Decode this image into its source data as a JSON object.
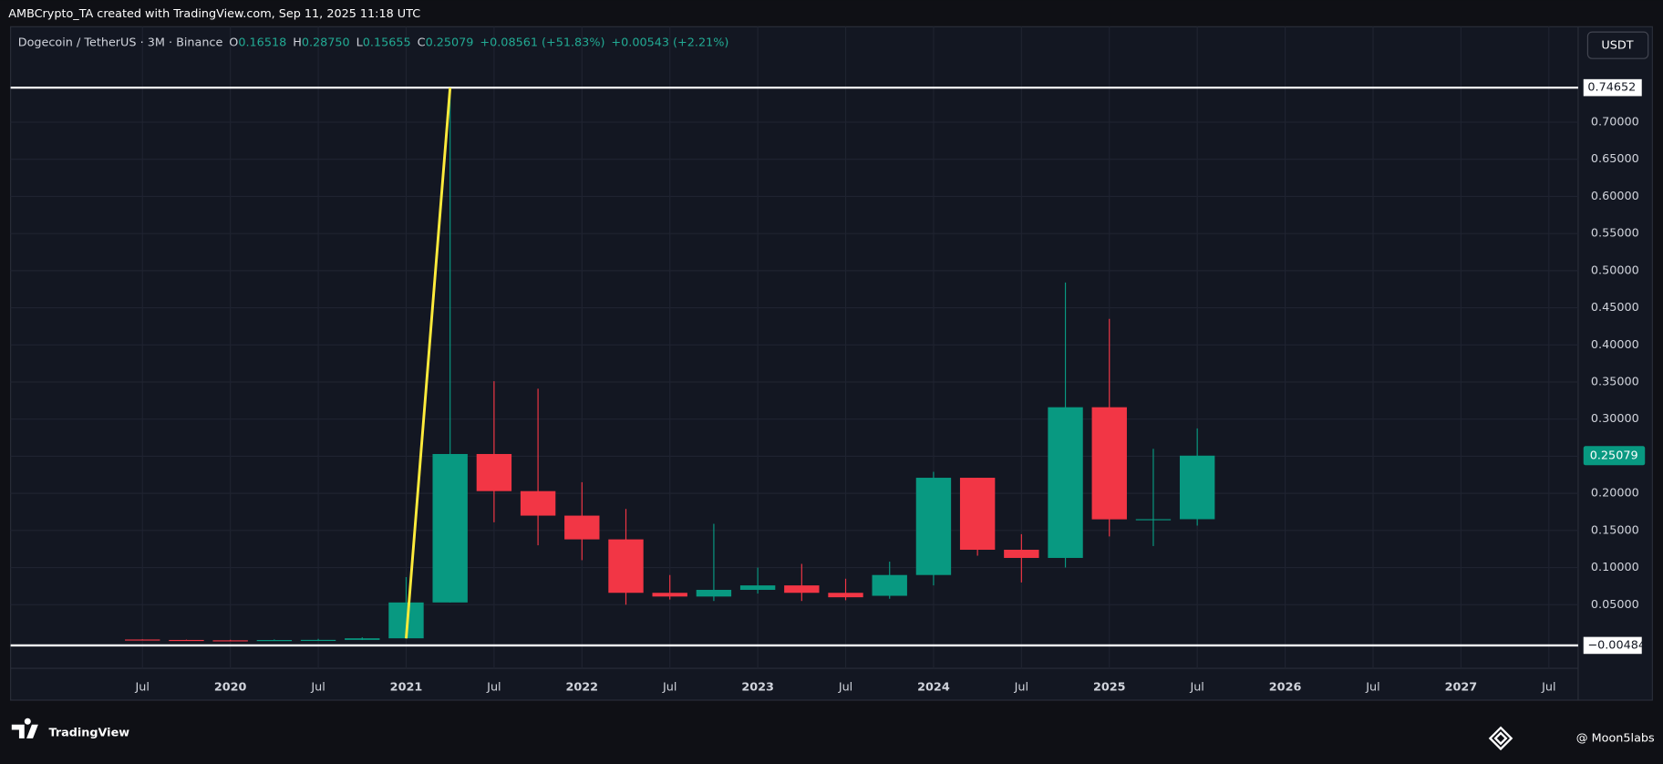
{
  "chart_data": {
    "type": "candlestick",
    "caption": "AMBCrypto_TA created with TradingView.com, Sep 11, 2025 11:18 UTC",
    "title": "Dogecoin / TetherUS · 3M · Binance",
    "legend": {
      "open_key": "O",
      "open": "0.16518",
      "high_key": "H",
      "high": "0.28750",
      "low_key": "L",
      "low": "0.15655",
      "close_key": "C",
      "close": "0.25079",
      "change": "+0.08561 (+51.83%)",
      "change2": "+0.00543 (+2.21%)"
    },
    "currency": "USDT",
    "x": [
      "2019-07",
      "2019-10",
      "2020-01",
      "2020-04",
      "2020-07",
      "2020-10",
      "2021-01",
      "2021-04",
      "2021-07",
      "2021-10",
      "2022-01",
      "2022-04",
      "2022-07",
      "2022-10",
      "2023-01",
      "2023-04",
      "2023-07",
      "2023-10",
      "2024-01",
      "2024-04",
      "2024-07",
      "2024-10",
      "2025-01",
      "2025-04",
      "2025-07"
    ],
    "open": [
      0.0031,
      0.0025,
      0.002,
      0.0018,
      0.0024,
      0.0026,
      0.0047,
      0.053,
      0.253,
      0.203,
      0.17,
      0.138,
      0.066,
      0.061,
      0.07,
      0.076,
      0.066,
      0.062,
      0.09,
      0.221,
      0.124,
      0.113,
      0.316,
      0.165,
      0.16518
    ],
    "high": [
      0.0034,
      0.0029,
      0.0027,
      0.0032,
      0.004,
      0.006,
      0.0872,
      0.74652,
      0.351,
      0.341,
      0.215,
      0.179,
      0.09,
      0.159,
      0.1,
      0.105,
      0.085,
      0.108,
      0.229,
      0.221,
      0.145,
      0.484,
      0.435,
      0.26,
      0.2875
    ],
    "low": [
      0.0022,
      0.0019,
      0.0012,
      0.0017,
      0.0024,
      0.0024,
      0.0046,
      0.053,
      0.161,
      0.13,
      0.11,
      0.05,
      0.057,
      0.055,
      0.065,
      0.055,
      0.056,
      0.058,
      0.076,
      0.116,
      0.08,
      0.1,
      0.142,
      0.129,
      0.15655
    ],
    "close": [
      0.0025,
      0.002,
      0.0018,
      0.0024,
      0.0026,
      0.0047,
      0.053,
      0.253,
      0.203,
      0.17,
      0.138,
      0.066,
      0.061,
      0.07,
      0.076,
      0.066,
      0.06,
      0.09,
      0.221,
      0.124,
      0.113,
      0.316,
      0.165,
      0.1652,
      0.25079
    ],
    "up_color": "#089981",
    "down_color": "#f23645",
    "xlim": [
      "2018-10",
      "2027-09"
    ],
    "xticks": [
      {
        "value": "2019-07",
        "label": "Jul"
      },
      {
        "value": "2020-01",
        "label": "2020"
      },
      {
        "value": "2020-07",
        "label": "Jul"
      },
      {
        "value": "2021-01",
        "label": "2021"
      },
      {
        "value": "2021-07",
        "label": "Jul"
      },
      {
        "value": "2022-01",
        "label": "2022"
      },
      {
        "value": "2022-07",
        "label": "Jul"
      },
      {
        "value": "2023-01",
        "label": "2023"
      },
      {
        "value": "2023-07",
        "label": "Jul"
      },
      {
        "value": "2024-01",
        "label": "2024"
      },
      {
        "value": "2024-07",
        "label": "Jul"
      },
      {
        "value": "2025-01",
        "label": "2025"
      },
      {
        "value": "2025-07",
        "label": "Jul"
      },
      {
        "value": "2026-01",
        "label": "2026"
      },
      {
        "value": "2026-07",
        "label": "Jul"
      },
      {
        "value": "2027-01",
        "label": "2027"
      },
      {
        "value": "2027-07",
        "label": "Jul"
      }
    ],
    "ylim": [
      -0.0786,
      0.8286
    ],
    "yticks": [
      {
        "value": 0.05,
        "label": "0.05000"
      },
      {
        "value": 0.1,
        "label": "0.10000"
      },
      {
        "value": 0.15,
        "label": "0.15000"
      },
      {
        "value": 0.2,
        "label": "0.20000"
      },
      {
        "value": 0.25,
        "label": "0.25000"
      },
      {
        "value": 0.3,
        "label": "0.30000"
      },
      {
        "value": 0.35,
        "label": "0.35000"
      },
      {
        "value": 0.4,
        "label": "0.40000"
      },
      {
        "value": 0.45,
        "label": "0.45000"
      },
      {
        "value": 0.5,
        "label": "0.50000"
      },
      {
        "value": 0.55,
        "label": "0.55000"
      },
      {
        "value": 0.6,
        "label": "0.60000"
      },
      {
        "value": 0.65,
        "label": "0.65000"
      },
      {
        "value": 0.7,
        "label": "0.70000"
      }
    ],
    "grid": true,
    "hlines": [
      0.74652,
      {
        "value": -0.00484,
        "label": "−0.00484"
      }
    ],
    "trendline": {
      "x": [
        "2021-01",
        "2021-04"
      ],
      "y": [
        0.0046,
        0.74652
      ],
      "color": "#ffeb3b"
    },
    "brand": "TradingView",
    "watermark": "@ Moon5labs"
  }
}
